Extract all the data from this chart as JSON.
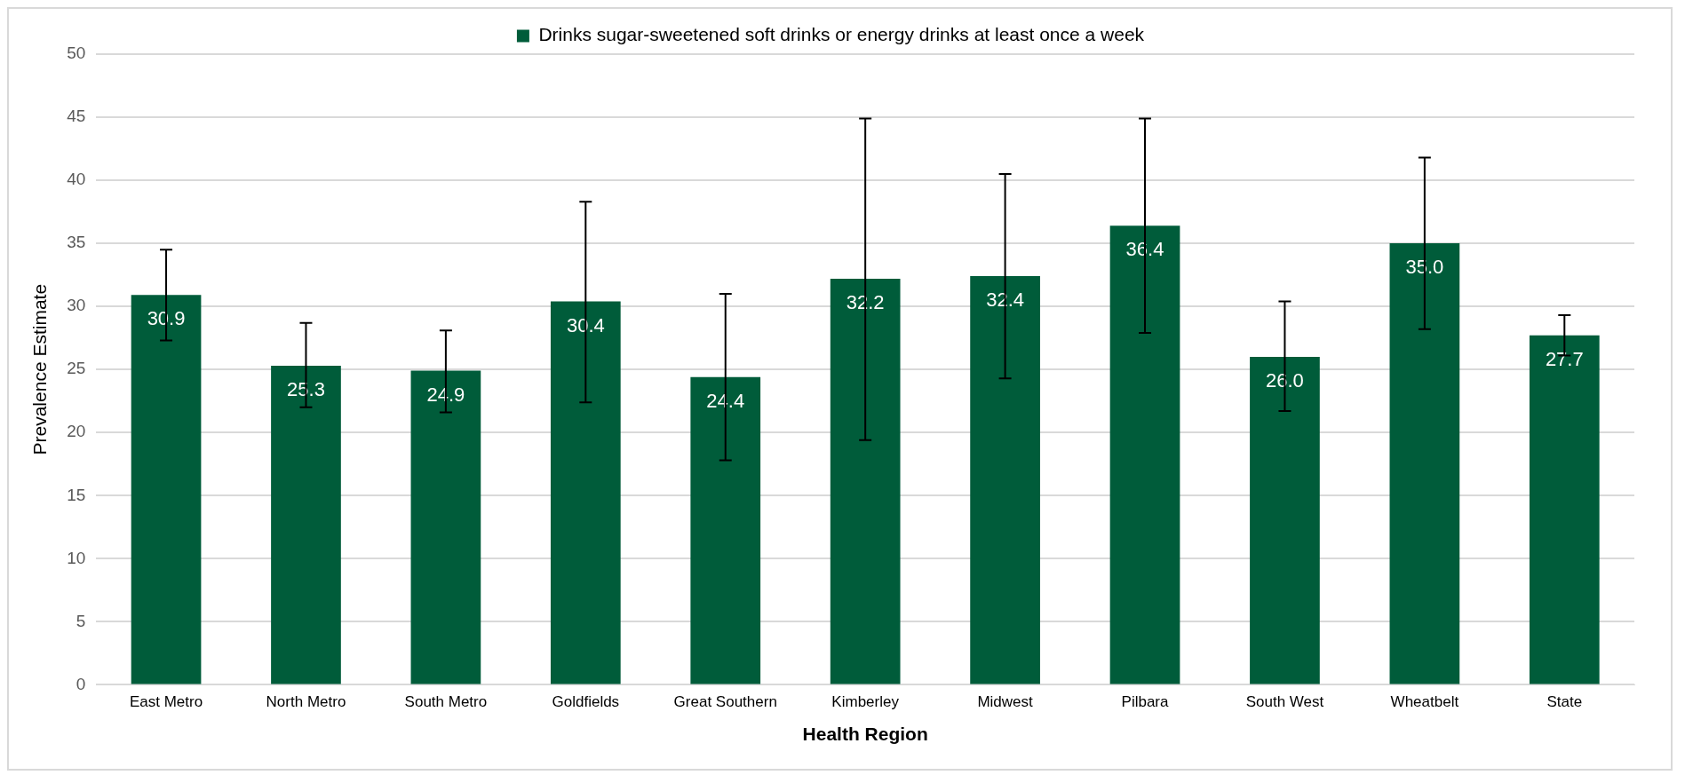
{
  "chart_data": {
    "type": "bar",
    "xlabel": "Health Region",
    "ylabel": "Prevalence Estimate",
    "categories": [
      "East Metro",
      "North Metro",
      "South Metro",
      "Goldfields",
      "Great Southern",
      "Kimberley",
      "Midwest",
      "Pilbara",
      "South West",
      "Wheatbelt",
      "State"
    ],
    "series": [
      {
        "name": "Drinks sugar-sweetened soft drinks or energy drinks at least once a week",
        "color": "#005c3a",
        "values": [
          30.9,
          25.3,
          24.9,
          30.4,
          24.4,
          32.2,
          32.4,
          36.4,
          26.0,
          35.0,
          27.7
        ],
        "value_labels": [
          "30.9",
          "25.3",
          "24.9",
          "30.4",
          "24.4",
          "32.2",
          "32.4",
          "36.4",
          "26.0",
          "35.0",
          "27.7"
        ],
        "errors": [
          [
            27.3,
            34.5
          ],
          [
            22.0,
            28.7
          ],
          [
            21.6,
            28.1
          ],
          [
            22.4,
            38.3
          ],
          [
            17.8,
            31.0
          ],
          [
            19.4,
            44.9
          ],
          [
            24.3,
            40.5
          ],
          [
            27.9,
            44.9
          ],
          [
            21.7,
            30.4
          ],
          [
            28.2,
            41.8
          ],
          [
            26.1,
            29.3
          ]
        ]
      }
    ],
    "ylim": [
      0,
      50
    ],
    "yticks": [
      0,
      5,
      10,
      15,
      20,
      25,
      30,
      35,
      40,
      45,
      50
    ],
    "grid": "y",
    "legend": "top"
  }
}
